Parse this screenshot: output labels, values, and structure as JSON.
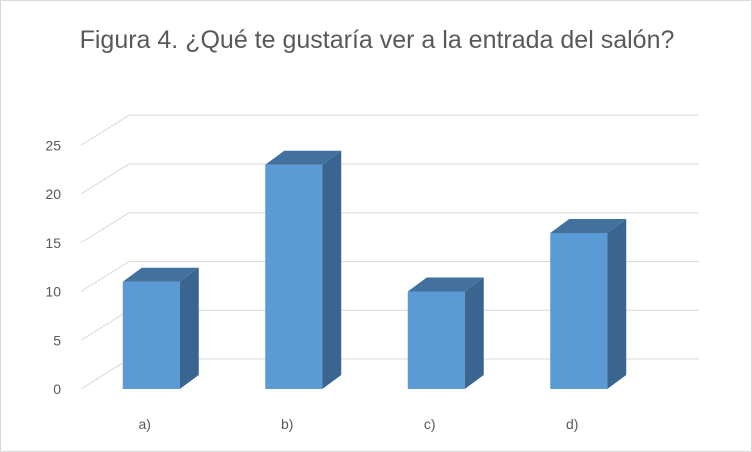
{
  "chart_data": {
    "type": "bar",
    "title": "Figura 4. ¿Qué te gustaría ver a la entrada del salón?",
    "categories": [
      "a)",
      "b)",
      "c)",
      "d)"
    ],
    "values": [
      11,
      23,
      10,
      16
    ],
    "ylim": [
      0,
      25
    ],
    "yticks": [
      0,
      5,
      10,
      15,
      20,
      25
    ],
    "xlabel": "",
    "ylabel": "",
    "grid": true,
    "style": "3d-column",
    "colors": {
      "front": "#5b9bd5",
      "side": "#3a6590",
      "top": "#41719c",
      "grid": "#d9d9d9"
    }
  }
}
